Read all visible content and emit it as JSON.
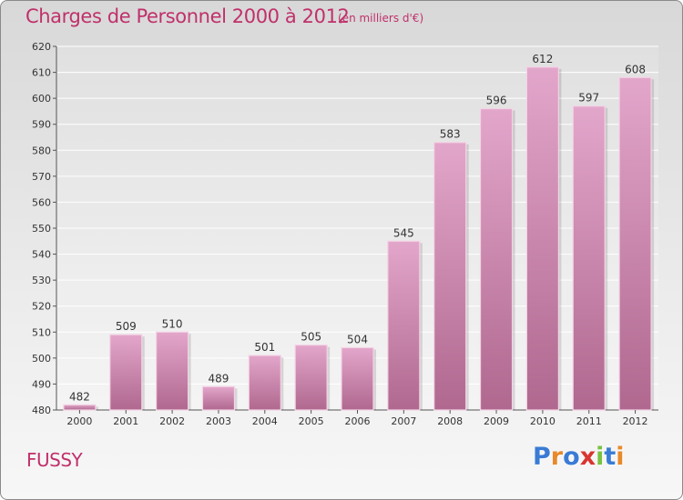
{
  "header": {
    "title": "Charges de Personnel 2000 à 2012",
    "subtitle": "(en milliers d'€)"
  },
  "footer": {
    "commune": "FUSSY",
    "brand": "Proxiti",
    "brand_letter_colors": [
      "#3a7bd5",
      "#e8892b",
      "#3a7bd5",
      "#d8362f",
      "#7ac143",
      "#3a7bd5",
      "#e8892b"
    ]
  },
  "colors": {
    "bar_top": "#e3a6cb",
    "bar_bottom": "#b0688f",
    "accent": "#c0306a",
    "grid": "#ffffff",
    "axis": "#555555"
  },
  "chart_data": {
    "type": "bar",
    "categories": [
      "2000",
      "2001",
      "2002",
      "2003",
      "2004",
      "2005",
      "2006",
      "2007",
      "2008",
      "2009",
      "2010",
      "2011",
      "2012"
    ],
    "values": [
      482,
      509,
      510,
      489,
      501,
      505,
      504,
      545,
      583,
      596,
      612,
      597,
      608
    ],
    "ylim": [
      480,
      620
    ],
    "yticks": [
      480,
      490,
      500,
      510,
      520,
      530,
      540,
      550,
      560,
      570,
      580,
      590,
      600,
      610,
      620
    ],
    "grid": true,
    "data_labels": true
  }
}
